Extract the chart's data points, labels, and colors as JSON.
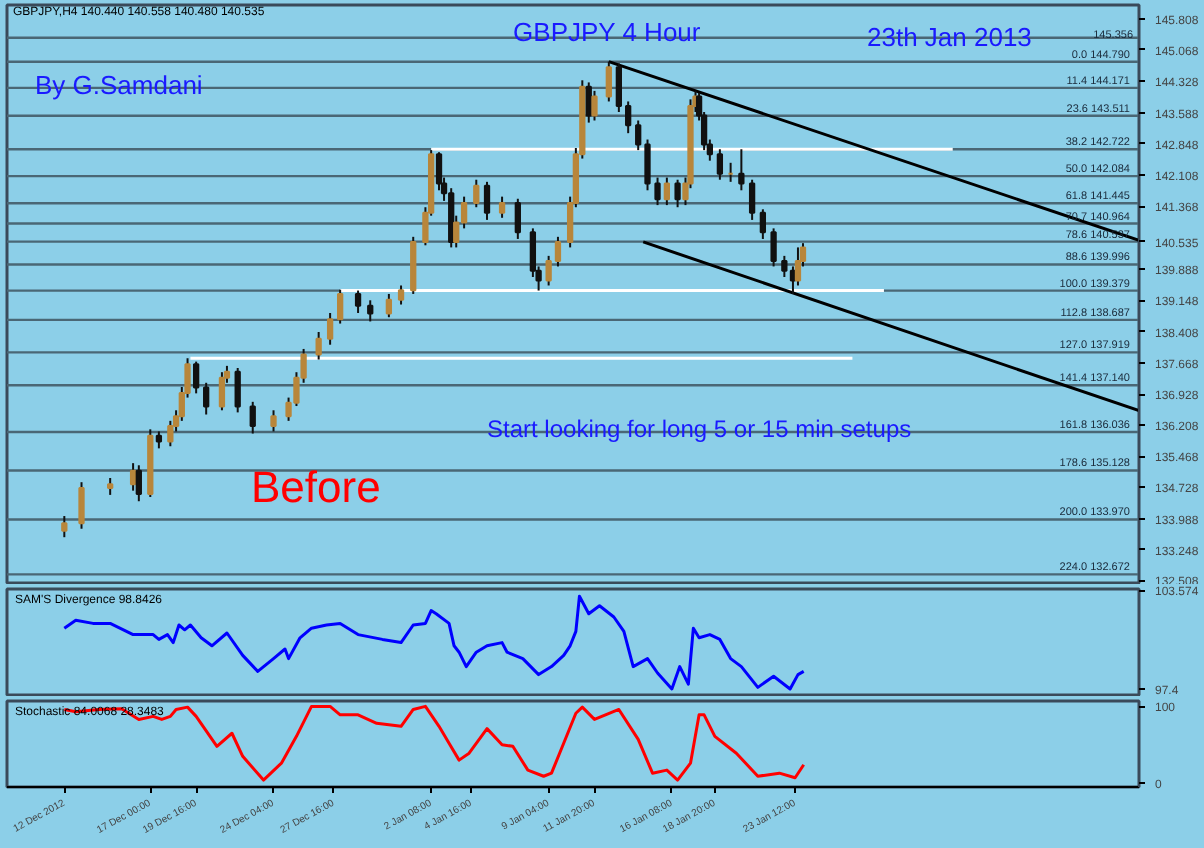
{
  "chart_data": [
    {
      "type": "candlestick",
      "title": "GBPJPY 4 Hour",
      "annotations": [
        "GBPJPY,H4 140.440 140.558 140.480 140.535",
        "By G.Samdani",
        "23th Jan 2013",
        "Start looking  for long 5 or 15 min setups",
        "Before"
      ],
      "x": [
        "2012-12-12T00:00",
        "2012-12-13T00:00",
        "2012-12-14T16:00",
        "2012-12-16T00:00",
        "2012-12-16T08:00",
        "2012-12-17T00:00",
        "2012-12-17T12:00",
        "2012-12-18T04:00",
        "2012-12-18T12:00",
        "2012-12-18T20:00",
        "2012-12-19T04:00",
        "2012-12-19T16:00",
        "2012-12-20T06:00",
        "2012-12-21T04:00",
        "2012-12-21T11:00",
        "2012-12-22T02:00",
        "2012-12-22T23:00",
        "2012-12-24T04:00",
        "2012-12-25T01:00",
        "2012-12-25T12:00",
        "2012-12-25T22:00",
        "2012-12-26T19:00",
        "2012-12-27T11:00",
        "2012-12-28T01:00",
        "2012-12-29T02:00",
        "2012-12-29T19:00",
        "2012-12-30T21:00",
        "2012-12-31T14:00",
        "2013-01-01T07:00",
        "2013-01-02T00:00",
        "2013-01-02T08:00",
        "2013-01-02T19:00",
        "2013-01-03T02:00",
        "2013-01-03T12:00",
        "2013-01-03T19:00",
        "2013-01-04T06:00",
        "2013-01-04T23:00",
        "2013-01-05T14:00",
        "2013-01-06T11:00",
        "2013-01-07T09:00",
        "2013-01-08T06:00",
        "2013-01-08T14:00",
        "2013-01-09T04:00",
        "2013-01-09T17:00",
        "2013-01-10T10:00",
        "2013-01-10T18:00",
        "2013-01-11T03:00",
        "2013-01-11T12:00",
        "2013-01-11T20:00",
        "2013-01-12T16:00",
        "2013-01-13T06:00",
        "2013-01-13T19:00",
        "2013-01-14T09:00",
        "2013-01-14T22:00",
        "2013-01-15T12:00",
        "2013-01-16T01:00",
        "2013-01-16T16:00",
        "2013-01-17T03:00",
        "2013-01-17T10:00",
        "2013-01-17T17:00",
        "2013-01-17T22:00",
        "2013-01-18T05:00",
        "2013-01-18T13:00",
        "2013-01-19T03:00",
        "2013-01-19T18:00",
        "2013-01-20T09:00",
        "2013-01-21T00:00",
        "2013-01-21T15:00",
        "2013-01-22T06:00",
        "2013-01-22T21:00",
        "2013-01-23T09:00",
        "2013-01-23T16:00",
        "2013-01-23T23:00"
      ],
      "ohlc": [
        [
          133.7,
          134.05,
          133.55,
          133.88
        ],
        [
          133.88,
          134.85,
          133.75,
          134.71
        ],
        [
          134.71,
          134.95,
          134.55,
          134.8
        ],
        [
          134.8,
          135.3,
          134.65,
          135.12
        ],
        [
          135.12,
          135.25,
          134.4,
          134.57
        ],
        [
          134.57,
          136.1,
          134.5,
          135.95
        ],
        [
          135.95,
          136.05,
          135.65,
          135.81
        ],
        [
          135.81,
          136.3,
          135.7,
          136.18
        ],
        [
          136.18,
          136.55,
          136.05,
          136.41
        ],
        [
          136.41,
          137.1,
          136.3,
          136.96
        ],
        [
          136.96,
          137.78,
          136.85,
          137.64
        ],
        [
          137.64,
          137.7,
          136.95,
          137.09
        ],
        [
          137.09,
          137.2,
          136.45,
          136.64
        ],
        [
          136.64,
          137.45,
          136.55,
          137.32
        ],
        [
          137.32,
          137.6,
          137.2,
          137.46
        ],
        [
          137.46,
          137.55,
          136.5,
          136.64
        ],
        [
          136.64,
          136.75,
          136.0,
          136.18
        ],
        [
          136.18,
          136.55,
          136.05,
          136.41
        ],
        [
          136.41,
          136.85,
          136.3,
          136.73
        ],
        [
          136.73,
          137.45,
          136.65,
          137.32
        ],
        [
          137.32,
          138.0,
          137.2,
          137.87
        ],
        [
          137.87,
          138.4,
          137.75,
          138.24
        ],
        [
          138.24,
          138.85,
          138.1,
          138.7
        ],
        [
          138.7,
          139.4,
          138.6,
          139.3
        ],
        [
          139.3,
          139.38,
          138.85,
          139.02
        ],
        [
          139.02,
          139.15,
          138.65,
          138.84
        ],
        [
          138.84,
          139.3,
          138.75,
          139.16
        ],
        [
          139.16,
          139.5,
          139.05,
          139.39
        ],
        [
          139.39,
          140.65,
          139.3,
          140.53
        ],
        [
          140.53,
          141.35,
          140.45,
          141.22
        ],
        [
          141.22,
          142.7,
          141.15,
          142.6
        ],
        [
          142.6,
          142.65,
          141.75,
          141.91
        ],
        [
          141.91,
          142.05,
          141.5,
          141.68
        ],
        [
          141.68,
          141.8,
          140.4,
          140.53
        ],
        [
          140.53,
          141.15,
          140.4,
          140.99
        ],
        [
          140.99,
          141.6,
          140.85,
          141.45
        ],
        [
          141.45,
          142.0,
          141.35,
          141.86
        ],
        [
          141.86,
          141.95,
          141.05,
          141.22
        ],
        [
          141.22,
          141.6,
          141.1,
          141.45
        ],
        [
          141.45,
          141.55,
          140.6,
          140.76
        ],
        [
          140.76,
          140.85,
          139.7,
          139.85
        ],
        [
          139.85,
          139.95,
          139.38,
          139.62
        ],
        [
          139.62,
          140.2,
          139.5,
          140.08
        ],
        [
          140.08,
          140.65,
          139.95,
          140.53
        ],
        [
          140.53,
          141.6,
          140.4,
          141.45
        ],
        [
          141.45,
          142.75,
          141.35,
          142.6
        ],
        [
          142.6,
          144.35,
          142.5,
          144.2
        ],
        [
          144.2,
          144.3,
          143.35,
          143.52
        ],
        [
          143.52,
          144.1,
          143.4,
          143.97
        ],
        [
          143.97,
          144.79,
          143.85,
          144.66
        ],
        [
          144.66,
          144.75,
          143.6,
          143.74
        ],
        [
          143.74,
          143.85,
          143.1,
          143.29
        ],
        [
          143.29,
          143.4,
          142.7,
          142.83
        ],
        [
          142.83,
          142.95,
          141.75,
          141.91
        ],
        [
          141.91,
          142.05,
          141.4,
          141.54
        ],
        [
          141.54,
          142.05,
          141.4,
          141.91
        ],
        [
          141.91,
          142.0,
          141.35,
          141.54
        ],
        [
          141.54,
          142.05,
          141.4,
          141.91
        ],
        [
          141.91,
          143.9,
          141.8,
          143.74
        ],
        [
          143.74,
          144.1,
          143.6,
          143.97
        ],
        [
          143.97,
          144.05,
          143.4,
          143.52
        ],
        [
          143.52,
          143.6,
          142.7,
          142.83
        ],
        [
          142.83,
          142.95,
          142.45,
          142.6
        ],
        [
          142.6,
          142.72,
          142.0,
          142.14
        ],
        [
          142.14,
          142.4,
          141.95,
          142.14
        ],
        [
          142.14,
          142.72,
          141.75,
          141.91
        ],
        [
          141.91,
          142.0,
          141.05,
          141.22
        ],
        [
          141.22,
          141.3,
          140.6,
          140.76
        ],
        [
          140.76,
          140.85,
          139.95,
          140.08
        ],
        [
          140.08,
          140.2,
          139.7,
          139.85
        ],
        [
          139.85,
          139.95,
          139.3,
          139.62
        ],
        [
          139.62,
          140.4,
          139.5,
          140.08
        ],
        [
          140.08,
          140.5,
          139.95,
          140.4
        ]
      ],
      "colors": [
        "#b8863b",
        "#b8863b",
        "#b8863b",
        "#b8863b",
        "#111111",
        "#b8863b",
        "#111111",
        "#b8863b",
        "#b8863b",
        "#b8863b",
        "#b8863b",
        "#111111",
        "#111111",
        "#b8863b",
        "#b8863b",
        "#111111",
        "#111111",
        "#b8863b",
        "#b8863b",
        "#b8863b",
        "#b8863b",
        "#b8863b",
        "#b8863b",
        "#b8863b",
        "#111111",
        "#111111",
        "#b8863b",
        "#b8863b",
        "#b8863b",
        "#b8863b",
        "#b8863b",
        "#111111",
        "#111111",
        "#111111",
        "#b8863b",
        "#b8863b",
        "#b8863b",
        "#111111",
        "#b8863b",
        "#111111",
        "#111111",
        "#111111",
        "#b8863b",
        "#b8863b",
        "#b8863b",
        "#b8863b",
        "#b8863b",
        "#111111",
        "#b8863b",
        "#b8863b",
        "#111111",
        "#111111",
        "#111111",
        "#111111",
        "#111111",
        "#b8863b",
        "#111111",
        "#b8863b",
        "#b8863b",
        "#b8863b",
        "#111111",
        "#111111",
        "#111111",
        "#111111",
        "#b8863b",
        "#111111",
        "#111111",
        "#111111",
        "#111111",
        "#111111",
        "#111111",
        "#b8863b",
        "#b8863b"
      ],
      "series": [
        {
          "type": "line",
          "color": "#ffffff",
          "x": [
            "2013-01-02T08:00",
            "2013-02-01T16:00"
          ],
          "values": [
            142.72,
            142.72
          ]
        },
        {
          "type": "line",
          "color": "#ffffff",
          "x": [
            "2012-12-28T01:00",
            "2013-01-28T16:00"
          ],
          "values": [
            139.38,
            139.38
          ]
        },
        {
          "type": "line",
          "color": "#ffffff",
          "x": [
            "2012-12-19T08:00",
            "2013-01-26T20:00"
          ],
          "values": [
            137.78,
            137.78
          ]
        },
        {
          "type": "line",
          "color": "#000000",
          "x": [
            "2013-01-12T16:00",
            "2013-02-12T12:00"
          ],
          "values": [
            144.79,
            140.57
          ]
        },
        {
          "type": "line",
          "color": "#000000",
          "x": [
            "2013-01-14T16:00",
            "2013-02-12T12:00"
          ],
          "values": [
            140.53,
            136.54
          ]
        }
      ],
      "ref_lines": [
        {
          "axis": "y",
          "value": 145.356,
          "label": "145.356",
          "color": "#4a6775"
        },
        {
          "axis": "y",
          "value": 144.79,
          "label": "0.0  144.790",
          "color": "#4a6775"
        },
        {
          "axis": "y",
          "value": 144.171,
          "label": "11.4  144.171",
          "color": "#4a6775"
        },
        {
          "axis": "y",
          "value": 143.511,
          "label": "23.6  143.511",
          "color": "#4a6775"
        },
        {
          "axis": "y",
          "value": 142.722,
          "label": "38.2  142.722",
          "color": "#4a6775"
        },
        {
          "axis": "y",
          "value": 142.084,
          "label": "50.0  142.084",
          "color": "#4a6775"
        },
        {
          "axis": "y",
          "value": 141.445,
          "label": "61.8  141.445",
          "color": "#4a6775"
        },
        {
          "axis": "y",
          "value": 140.964,
          "label": "70.7  140.964",
          "color": "#4a6775"
        },
        {
          "axis": "y",
          "value": 140.537,
          "label": "78.6  140.537",
          "color": "#4a6775"
        },
        {
          "axis": "y",
          "value": 139.996,
          "label": "88.6  139.996",
          "color": "#4a6775"
        },
        {
          "axis": "y",
          "value": 139.379,
          "label": "100.0  139.379",
          "color": "#4a6775"
        },
        {
          "axis": "y",
          "value": 138.687,
          "label": "112.8  138.687",
          "color": "#4a6775"
        },
        {
          "axis": "y",
          "value": 137.919,
          "label": "127.0  137.919",
          "color": "#4a6775"
        },
        {
          "axis": "y",
          "value": 137.14,
          "label": "141.4  137.140",
          "color": "#4a6775"
        },
        {
          "axis": "y",
          "value": 136.036,
          "label": "161.8  136.036",
          "color": "#4a6775"
        },
        {
          "axis": "y",
          "value": 135.128,
          "label": "178.6  135.128",
          "color": "#4a6775"
        },
        {
          "axis": "y",
          "value": 133.97,
          "label": "200.0  133.970",
          "color": "#4a6775"
        },
        {
          "axis": "y",
          "value": 132.672,
          "label": "224.0  132.672",
          "color": "#4a6775"
        }
      ],
      "xlim": [
        "2012-12-08T16:00",
        "2013-02-12T12:00"
      ],
      "ylim": [
        132.42,
        146.13
      ],
      "yticks": [
        145.808,
        145.068,
        144.328,
        143.588,
        142.848,
        142.108,
        141.368,
        {
          "value": 140.535,
          "label": "140.535"
        },
        139.888,
        139.148,
        138.408,
        137.668,
        136.928,
        136.208,
        135.468,
        134.728,
        133.988,
        133.248,
        132.508
      ],
      "tick_labels": "y",
      "grid": false
    },
    {
      "type": "line",
      "title": "SAM'S Divergence 98.8426",
      "series": [
        {
          "color": "#0000ff",
          "x": [
            "2012-12-12T00:00",
            "2012-12-12T16:00",
            "2012-12-13T16:00",
            "2012-12-14T16:00",
            "2012-12-16T00:00",
            "2012-12-17T04:00",
            "2012-12-17T12:00",
            "2012-12-18T00:00",
            "2012-12-18T08:00",
            "2012-12-18T16:00",
            "2012-12-19T00:00",
            "2012-12-19T08:00",
            "2012-12-19T23:00",
            "2012-12-20T14:00",
            "2012-12-21T11:00",
            "2012-12-22T09:00",
            "2012-12-23T06:00",
            "2012-12-24T04:00",
            "2012-12-24T20:00",
            "2012-12-25T01:00",
            "2012-12-25T17:00",
            "2012-12-26T09:00",
            "2012-12-27T06:00",
            "2012-12-28T01:00",
            "2012-12-29T02:00",
            "2012-12-30T12:00",
            "2012-12-31T14:00",
            "2013-01-01T07:00",
            "2013-01-02T00:00",
            "2013-01-02T08:00",
            "2013-01-02T15:00",
            "2013-01-03T09:00",
            "2013-01-03T16:00",
            "2013-01-03T23:00",
            "2013-01-04T09:00",
            "2013-01-04T23:00",
            "2013-01-05T14:00",
            "2013-01-06T11:00",
            "2013-01-06T18:00",
            "2013-01-07T16:00",
            "2013-01-08T14:00",
            "2013-01-09T08:00",
            "2013-01-10T01:00",
            "2013-01-10T10:00",
            "2013-01-10T18:00",
            "2013-01-10T23:00",
            "2013-01-11T12:00",
            "2013-01-12T03:00",
            "2013-01-12T23:00",
            "2013-01-13T13:00",
            "2013-01-14T02:00",
            "2013-01-14T22:00",
            "2013-01-15T12:00",
            "2013-01-16T08:00",
            "2013-01-16T19:00",
            "2013-01-17T07:00",
            "2013-01-17T14:00",
            "2013-01-17T22:00",
            "2013-01-18T13:00",
            "2013-01-19T03:00",
            "2013-01-19T18:00",
            "2013-01-20T09:00",
            "2013-01-21T08:00",
            "2013-01-22T06:00",
            "2013-01-23T05:00",
            "2013-01-23T16:00",
            "2013-01-24T00:00"
          ],
          "values": [
            101.2,
            101.7,
            101.5,
            101.5,
            100.8,
            100.8,
            100.5,
            100.8,
            100.3,
            101.4,
            101.1,
            101.4,
            100.6,
            100.1,
            100.9,
            99.5,
            98.5,
            99.3,
            99.9,
            99.3,
            100.6,
            101.2,
            101.4,
            101.5,
            100.8,
            100.5,
            100.3,
            101.4,
            101.5,
            102.3,
            102.1,
            101.5,
            100.1,
            99.7,
            98.8,
            99.7,
            100.1,
            100.3,
            99.7,
            99.3,
            98.3,
            98.8,
            99.5,
            100.1,
            101.0,
            103.2,
            102.1,
            102.6,
            101.9,
            101.0,
            98.8,
            99.3,
            98.4,
            97.4,
            98.8,
            97.7,
            101.2,
            100.6,
            100.8,
            100.5,
            99.3,
            98.8,
            97.5,
            98.2,
            97.4,
            98.3,
            98.5
          ]
        }
      ],
      "xlim": [
        "2012-12-08T16:00",
        "2013-02-12T12:00"
      ],
      "ylim": [
        96.9,
        103.65
      ],
      "yticks": [
        103.574,
        97.4
      ],
      "tick_labels": "y",
      "grid": false
    },
    {
      "type": "line",
      "title": "Stochastic 84.0068 28.3483",
      "series": [
        {
          "color": "#ff0000",
          "x": [
            "2012-12-12T00:00",
            "2012-12-12T16:00",
            "2012-12-14T00:00",
            "2012-12-15T08:00",
            "2012-12-16T08:00",
            "2012-12-17T04:00",
            "2012-12-17T16:00",
            "2012-12-18T04:00",
            "2012-12-18T12:00",
            "2012-12-19T04:00",
            "2012-12-19T16:00",
            "2012-12-20T21:00",
            "2012-12-21T18:00",
            "2012-12-22T09:00",
            "2012-12-23T14:00",
            "2012-12-24T15:00",
            "2012-12-25T12:00",
            "2012-12-26T09:00",
            "2012-12-27T11:00",
            "2012-12-28T01:00",
            "2012-12-29T02:00",
            "2012-12-30T04:00",
            "2012-12-31T14:00",
            "2013-01-01T07:00",
            "2013-01-02T00:00",
            "2013-01-02T19:00",
            "2013-01-03T09:00",
            "2013-01-03T23:00",
            "2013-01-04T13:00",
            "2013-01-05T14:00",
            "2013-01-06T11:00",
            "2013-01-07T02:00",
            "2013-01-07T23:00",
            "2013-01-08T21:00",
            "2013-01-09T08:00",
            "2013-01-10T01:00",
            "2013-01-10T18:00",
            "2013-01-11T03:00",
            "2013-01-11T20:00",
            "2013-01-13T06:00",
            "2013-01-14T09:00",
            "2013-01-15T05:00",
            "2013-01-16T01:00",
            "2013-01-16T16:00",
            "2013-01-17T10:00",
            "2013-01-17T22:00",
            "2013-01-18T05:00",
            "2013-01-18T20:00",
            "2013-01-20T02:00",
            "2013-01-21T08:00",
            "2013-01-22T14:00",
            "2013-01-23T12:00",
            "2013-01-24T00:00"
          ],
          "values": [
            96,
            93,
            96,
            97,
            83,
            87,
            83,
            87,
            96,
            99,
            87,
            48,
            65,
            35,
            4,
            26,
            61,
            100,
            100,
            89,
            89,
            78,
            74,
            96,
            100,
            74,
            52,
            30,
            39,
            71,
            50,
            48,
            17,
            9,
            13,
            52,
            91,
            99,
            83,
            96,
            57,
            13,
            17,
            4,
            26,
            89,
            89,
            61,
            39,
            9,
            13,
            7,
            24
          ]
        }
      ],
      "xlim": [
        "2012-12-08T16:00",
        "2013-02-12T12:00"
      ],
      "ylim": [
        -5,
        107
      ],
      "yticks": [
        100,
        0
      ],
      "xticks": [
        {
          "value": "2012-12-12T00:00",
          "label": "12 Dec 2012"
        },
        {
          "value": "2012-12-17T00:00",
          "label": "17 Dec 00:00"
        },
        {
          "value": "2012-12-19T16:00",
          "label": "19 Dec 16:00"
        },
        {
          "value": "2012-12-24T04:00",
          "label": "24 Dec 04:00"
        },
        {
          "value": "2012-12-27T16:00",
          "label": "27 Dec 16:00"
        },
        {
          "value": "2013-01-02T08:00",
          "label": "2 Jan 08:00"
        },
        {
          "value": "2013-01-04T16:00",
          "label": "4 Jan 16:00"
        },
        {
          "value": "2013-01-09T04:00",
          "label": "9 Jan 04:00"
        },
        {
          "value": "2013-01-11T20:00",
          "label": "11 Jan 20:00"
        },
        {
          "value": "2013-01-16T08:00",
          "label": "16 Jan 08:00"
        },
        {
          "value": "2013-01-18T20:00",
          "label": "18 Jan 20:00"
        },
        {
          "value": "2013-01-23T12:00",
          "label": "23 Jan 12:00"
        }
      ],
      "grid": false
    }
  ]
}
